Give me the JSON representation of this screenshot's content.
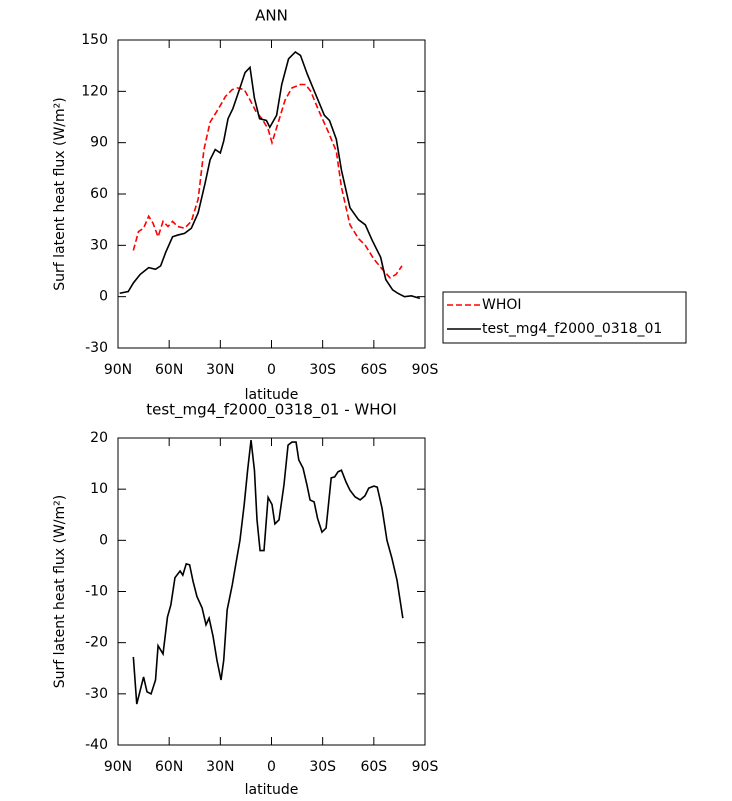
{
  "chart_data": [
    {
      "type": "line",
      "title": "ANN",
      "x_label": "latitude",
      "y_label": "Surf latent heat flux (W/m²)",
      "xlim": [
        90,
        -90
      ],
      "xticks": [
        {
          "value": 90,
          "label": "90N"
        },
        {
          "value": 60,
          "label": "60N"
        },
        {
          "value": 30,
          "label": "30N"
        },
        0,
        {
          "value": -30,
          "label": "30S"
        },
        {
          "value": -60,
          "label": "60S"
        },
        {
          "value": -90,
          "label": "90S"
        }
      ],
      "ylim": [
        -30,
        150
      ],
      "yticks": [
        -30,
        0,
        30,
        60,
        90,
        120,
        150
      ],
      "legend": "outside right",
      "series": [
        {
          "name": "WHOI",
          "color": "#ff0000",
          "line_style": "dashed",
          "x": [
            81,
            78,
            75,
            72,
            69.5,
            66.5,
            63.6,
            60.7,
            58,
            55,
            51,
            47,
            43,
            39.6,
            36,
            31,
            27,
            23,
            20,
            16,
            12.6,
            9,
            5.6,
            2,
            -0.3,
            -4,
            -8,
            -12,
            -17,
            -20,
            -23,
            -28,
            -33,
            -38,
            -41,
            -46,
            -51,
            -55,
            -60,
            -65,
            -69.5,
            -73,
            -76.5
          ],
          "values": [
            27,
            38,
            40,
            47,
            43,
            35,
            44,
            41,
            44,
            41,
            40,
            44,
            57,
            86,
            102,
            110,
            117,
            121,
            122,
            121,
            115,
            108,
            104,
            98,
            90,
            102,
            115,
            122,
            124,
            124,
            120,
            108,
            97,
            85,
            64,
            42,
            34,
            30,
            22,
            16,
            11,
            13,
            18
          ]
        },
        {
          "name": "test_mg4_f2000_0318_01",
          "color": "#000000",
          "line_style": "solid",
          "x": [
            89,
            84,
            81,
            77,
            72,
            68,
            65,
            62,
            58,
            55,
            51,
            47,
            43,
            39,
            36,
            33,
            30,
            28,
            25.5,
            22.6,
            18.5,
            15.5,
            12.6,
            10,
            7,
            3,
            1,
            -3,
            -6,
            -10,
            -14,
            -17,
            -21,
            -26,
            -31,
            -34,
            -38,
            -41,
            -46,
            -51,
            -55,
            -59,
            -64,
            -67,
            -71,
            -74,
            -78,
            -82,
            -87
          ],
          "values": [
            2,
            3,
            8,
            13,
            17,
            16,
            18,
            26,
            35,
            36,
            37,
            40,
            49,
            66,
            80,
            86,
            84,
            91,
            104,
            110,
            122,
            131,
            134,
            116,
            104,
            103,
            99,
            106,
            124,
            139,
            143,
            141,
            130,
            118,
            106,
            103,
            92,
            74,
            52,
            45,
            42,
            33,
            23,
            10,
            4,
            2,
            0,
            0.5,
            -1
          ]
        }
      ]
    },
    {
      "type": "line",
      "title": "test_mg4_f2000_0318_01 - WHOI",
      "x_label": "latitude",
      "y_label": "Surf latent heat flux (W/m²)",
      "xlim": [
        90,
        -90
      ],
      "xticks": [
        {
          "value": 90,
          "label": "90N"
        },
        {
          "value": 60,
          "label": "60N"
        },
        {
          "value": 30,
          "label": "30N"
        },
        0,
        {
          "value": -30,
          "label": "30S"
        },
        {
          "value": -60,
          "label": "60S"
        },
        {
          "value": -90,
          "label": "90S"
        }
      ],
      "ylim": [
        -40,
        20
      ],
      "yticks": [
        -40,
        -30,
        -20,
        -10,
        0,
        10,
        20
      ],
      "series": [
        {
          "color": "#000000",
          "line_style": "solid",
          "x": [
            81,
            79,
            75,
            73,
            70.6,
            68,
            66.5,
            63.6,
            61,
            59,
            56.6,
            53.6,
            52,
            50,
            48,
            46,
            43.7,
            40.7,
            38.4,
            36.6,
            34.3,
            32,
            29.6,
            28,
            26,
            23,
            21,
            18.5,
            16,
            14,
            12,
            10,
            8.5,
            6.7,
            4.4,
            2,
            -0.3,
            -2,
            -4.4,
            -7.3,
            -9.7,
            -12,
            -14.4,
            -16,
            -18.5,
            -20.8,
            -22.6,
            -25,
            -27,
            -29.6,
            -32,
            -35,
            -37,
            -39,
            -41,
            -43.7,
            -46,
            -49,
            -52,
            -54.8,
            -57,
            -60,
            -62,
            -64.8,
            -67.7,
            -70.6,
            -73.6,
            -77
          ],
          "values": [
            -22.8,
            -32,
            -26.7,
            -29.6,
            -30,
            -27.3,
            -20.6,
            -22.2,
            -15,
            -12.6,
            -7.3,
            -6,
            -6.8,
            -4.6,
            -4.8,
            -8,
            -11,
            -13.2,
            -16.5,
            -15.2,
            -18.7,
            -23.4,
            -27.3,
            -23.4,
            -13.6,
            -8.7,
            -4.8,
            0,
            7,
            13.7,
            19.6,
            13.7,
            4,
            -2,
            -2,
            8.4,
            7,
            3.2,
            4,
            10.8,
            18.6,
            19.2,
            19.2,
            15.7,
            14.1,
            10.8,
            7.9,
            7.5,
            4.3,
            1.6,
            2.4,
            12.2,
            12.4,
            13.4,
            13.7,
            11.4,
            9.8,
            8.5,
            7.9,
            8.7,
            10.2,
            10.6,
            10.4,
            6.3,
            0,
            -3.5,
            -7.8,
            -15.2
          ]
        }
      ]
    }
  ]
}
